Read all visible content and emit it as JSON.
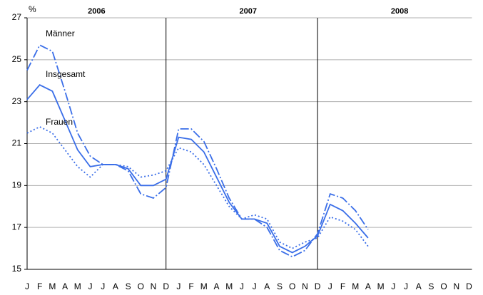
{
  "chart_data": {
    "type": "line",
    "y_unit": "%",
    "years": [
      "2006",
      "2007",
      "2008"
    ],
    "categories": [
      "J",
      "F",
      "M",
      "A",
      "M",
      "J",
      "J",
      "A",
      "S",
      "O",
      "N",
      "D",
      "J",
      "F",
      "M",
      "A",
      "M",
      "J",
      "J",
      "A",
      "S",
      "O",
      "N",
      "D",
      "J",
      "F",
      "M",
      "A",
      "M",
      "J",
      "J",
      "A",
      "S",
      "O",
      "N",
      "D"
    ],
    "series": [
      {
        "name": "Männer",
        "color": "#3a6ee8",
        "line_style": "dashdot",
        "values": [
          24.5,
          25.7,
          25.4,
          23.5,
          21.5,
          20.4,
          20.0,
          20.0,
          19.7,
          18.6,
          18.4,
          18.9,
          21.7,
          21.7,
          21.1,
          19.8,
          18.4,
          17.4,
          17.4,
          17.0,
          15.9,
          15.6,
          15.9,
          16.7,
          18.6,
          18.4,
          17.8,
          16.9,
          null,
          null,
          null,
          null,
          null,
          null,
          null,
          null
        ]
      },
      {
        "name": "Insgesamt",
        "color": "#3a6ee8",
        "line_style": "solid",
        "values": [
          23.1,
          23.8,
          23.5,
          22.1,
          20.7,
          19.9,
          20.0,
          20.0,
          19.8,
          19.0,
          19.0,
          19.3,
          21.3,
          21.2,
          20.6,
          19.4,
          18.2,
          17.4,
          17.4,
          17.2,
          16.1,
          15.8,
          16.1,
          16.6,
          18.1,
          17.8,
          17.2,
          16.5,
          null,
          null,
          null,
          null,
          null,
          null,
          null,
          null
        ]
      },
      {
        "name": "Frauen",
        "color": "#3a6ee8",
        "line_style": "dotted",
        "values": [
          21.5,
          21.8,
          21.5,
          20.7,
          19.9,
          19.4,
          20.0,
          20.0,
          19.9,
          19.4,
          19.5,
          19.7,
          20.8,
          20.6,
          20.0,
          19.0,
          18.0,
          17.4,
          17.6,
          17.4,
          16.3,
          16.0,
          16.3,
          16.5,
          17.5,
          17.3,
          16.9,
          16.1,
          null,
          null,
          null,
          null,
          null,
          null,
          null,
          null
        ]
      }
    ],
    "ylim": [
      15,
      27
    ],
    "yticks": [
      15,
      17,
      19,
      21,
      23,
      25,
      27
    ],
    "grid": true
  }
}
